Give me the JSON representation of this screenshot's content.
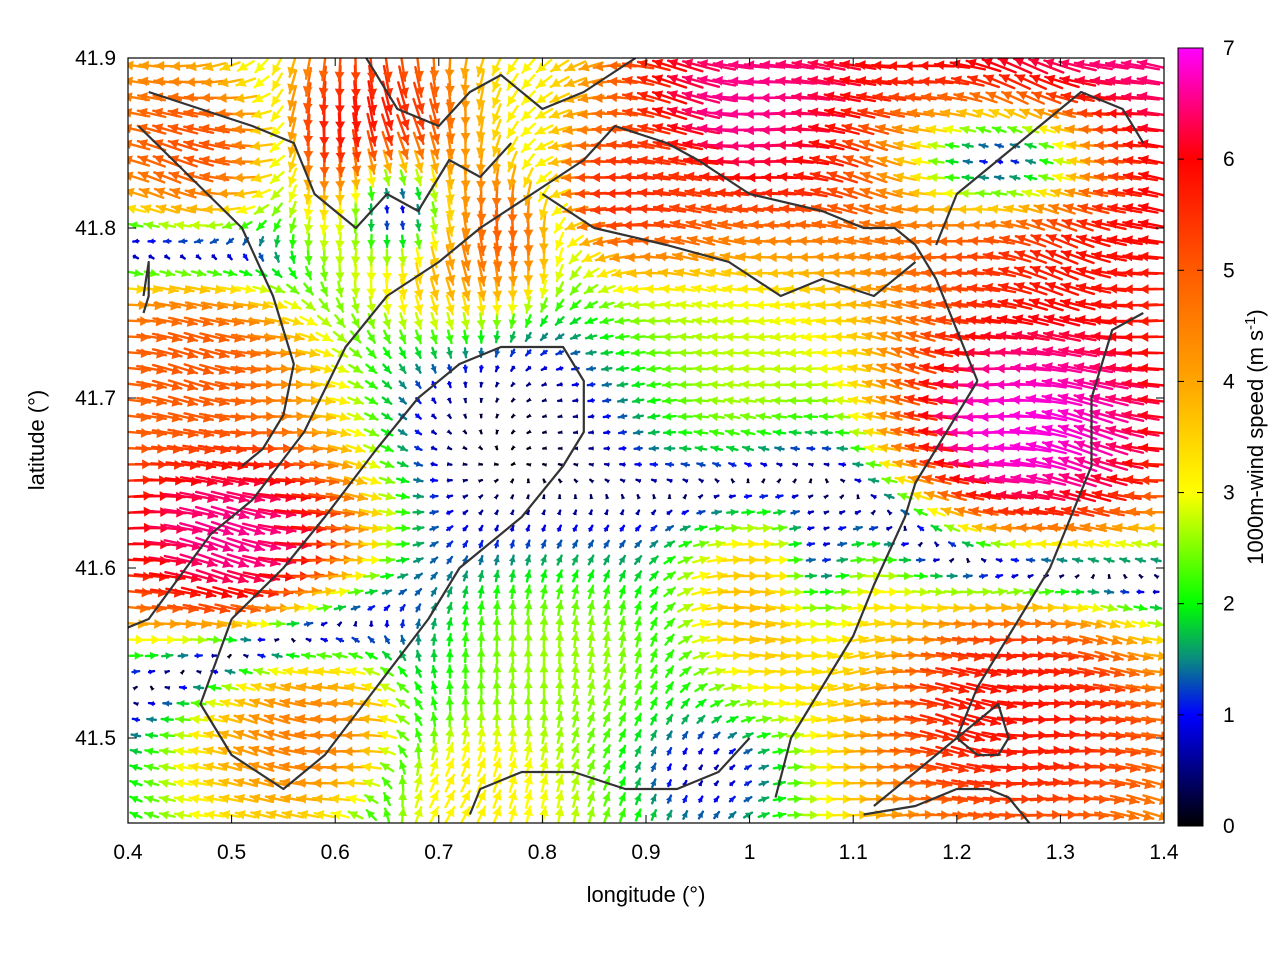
{
  "chart_data": {
    "type": "vector-field",
    "title": "",
    "xlabel": "longitude (°)",
    "ylabel": "latitude (°)",
    "colorbar_label": "1000m-wind speed (m s",
    "colorbar_label_sup": "-1",
    "colorbar_label_end": ")",
    "xlim": [
      0.4,
      1.4
    ],
    "ylim": [
      41.45,
      41.9
    ],
    "xticks": [
      "0.4",
      "0.5",
      "0.6",
      "0.7",
      "0.8",
      "0.9",
      "1",
      "1.1",
      "1.2",
      "1.3",
      "1.4"
    ],
    "xtick_values": [
      0.4,
      0.5,
      0.6,
      0.7,
      0.8,
      0.9,
      1.0,
      1.1,
      1.2,
      1.3,
      1.4
    ],
    "yticks": [
      "41.5",
      "41.6",
      "41.7",
      "41.8",
      "41.9"
    ],
    "ytick_values": [
      41.5,
      41.6,
      41.7,
      41.8,
      41.9
    ],
    "colorbar_range": [
      0,
      7
    ],
    "colorbar_ticks": [
      "0",
      "1",
      "2",
      "3",
      "4",
      "5",
      "6",
      "7"
    ],
    "colorbar_tick_values": [
      0,
      1,
      2,
      3,
      4,
      5,
      6,
      7
    ],
    "colormap": [
      {
        "value": 0,
        "color": "#000000"
      },
      {
        "value": 1,
        "color": "#0000ff"
      },
      {
        "value": 1.5,
        "color": "#0a8a80"
      },
      {
        "value": 2,
        "color": "#00ff00"
      },
      {
        "value": 3,
        "color": "#ffff00"
      },
      {
        "value": 4,
        "color": "#ffa500"
      },
      {
        "value": 5,
        "color": "#ff5a00"
      },
      {
        "value": 6,
        "color": "#ff0000"
      },
      {
        "value": 7,
        "color": "#ff00ff"
      }
    ],
    "grid": false,
    "wind_field": {
      "lon_range": [
        0.4,
        1.4
      ],
      "lat_range": [
        41.45,
        41.9
      ],
      "columns": 66,
      "rows": 48,
      "speed_scale_max": 7,
      "dominant_flow": "westerly in the south, easterly in the northwest, weak winds over the central basin",
      "features": [
        {
          "kind": "uniform",
          "lon": 0.5,
          "lat": 41.62,
          "u": 6.5,
          "v": -0.9
        },
        {
          "kind": "uniform",
          "lon": 0.46,
          "lat": 41.72,
          "u": 5.0,
          "v": -0.5
        },
        {
          "kind": "uniform",
          "lon": 0.47,
          "lat": 41.85,
          "u": -5.0,
          "v": 1.0
        },
        {
          "kind": "uniform",
          "lon": 0.62,
          "lat": 41.86,
          "u": 1.0,
          "v": -5.8
        },
        {
          "kind": "uniform",
          "lon": 0.75,
          "lat": 41.8,
          "u": 1.0,
          "v": -5.0
        },
        {
          "kind": "uniform",
          "lon": 0.88,
          "lat": 41.82,
          "u": -5.5,
          "v": 0.8
        },
        {
          "kind": "uniform",
          "lon": 1.0,
          "lat": 41.87,
          "u": -6.5,
          "v": 1.0
        },
        {
          "kind": "uniform",
          "lon": 1.3,
          "lat": 41.86,
          "u": -6.5,
          "v": 1.5
        },
        {
          "kind": "uniform",
          "lon": 1.27,
          "lat": 41.68,
          "u": -6.8,
          "v": 1.0
        },
        {
          "kind": "uniform",
          "lon": 1.25,
          "lat": 41.52,
          "u": 5.8,
          "v": -0.6
        },
        {
          "kind": "uniform",
          "lon": 1.03,
          "lat": 41.58,
          "u": 3.8,
          "v": 0.2
        },
        {
          "kind": "uniform",
          "lon": 0.82,
          "lat": 41.55,
          "u": 0.3,
          "v": 2.6
        },
        {
          "kind": "uniform",
          "lon": 0.58,
          "lat": 41.5,
          "u": -4.5,
          "v": 0.5
        },
        {
          "kind": "uniform",
          "lon": 0.95,
          "lat": 41.72,
          "u": -2.8,
          "v": 0.1
        },
        {
          "kind": "uniform",
          "lon": 0.73,
          "lat": 41.47,
          "u": 1.0,
          "v": 3.0
        },
        {
          "kind": "calm",
          "lon": 0.78,
          "lat": 41.68,
          "radius_lon": 0.12,
          "radius_lat": 0.06,
          "strength": 0.85
        },
        {
          "kind": "calm",
          "lon": 0.66,
          "lat": 41.81,
          "radius_lon": 0.05,
          "radius_lat": 0.03,
          "strength": 0.8
        },
        {
          "kind": "calm",
          "lon": 1.24,
          "lat": 41.84,
          "radius_lon": 0.1,
          "radius_lat": 0.035,
          "strength": 0.85
        },
        {
          "kind": "calm",
          "lon": 1.07,
          "lat": 41.62,
          "radius_lon": 0.035,
          "radius_lat": 0.05,
          "strength": 0.75
        },
        {
          "kind": "calm",
          "lon": 0.96,
          "lat": 41.48,
          "radius_lon": 0.07,
          "radius_lat": 0.03,
          "strength": 0.7
        }
      ]
    },
    "terrain_contours": [
      {
        "name": "outer-ridge-west",
        "lon": [
          0.4,
          0.42,
          0.48,
          0.52,
          0.57,
          0.61,
          0.65,
          0.7,
          0.74,
          0.79,
          0.84,
          0.87,
          0.92,
          0.95,
          1.0,
          1.07,
          1.11,
          1.14,
          1.16,
          1.18,
          1.2,
          1.22
        ],
        "lat": [
          41.565,
          41.57,
          41.62,
          41.64,
          41.68,
          41.73,
          41.76,
          41.78,
          41.8,
          41.82,
          41.84,
          41.86,
          41.85,
          41.84,
          41.82,
          41.81,
          41.8,
          41.8,
          41.79,
          41.77,
          41.74,
          41.71
        ]
      },
      {
        "name": "outer-ridge-east",
        "lon": [
          1.22,
          1.2,
          1.18,
          1.16,
          1.15,
          1.12,
          1.1,
          1.07,
          1.04,
          1.025
        ],
        "lat": [
          41.71,
          41.69,
          41.67,
          41.65,
          41.63,
          41.59,
          41.56,
          41.53,
          41.5,
          41.465
        ]
      },
      {
        "name": "inner-basin-rim",
        "lon": [
          0.5,
          0.47,
          0.5,
          0.55,
          0.59,
          0.64,
          0.69,
          0.72,
          0.78,
          0.82,
          0.84,
          0.84,
          0.82,
          0.76,
          0.72,
          0.68,
          0.64,
          0.59,
          0.55,
          0.5
        ],
        "lat": [
          41.57,
          41.52,
          41.49,
          41.47,
          41.49,
          41.53,
          41.57,
          41.6,
          41.63,
          41.66,
          41.68,
          41.71,
          41.73,
          41.73,
          41.72,
          41.7,
          41.67,
          41.63,
          41.6,
          41.57
        ]
      },
      {
        "name": "northwest-hills",
        "lon": [
          0.42,
          0.47,
          0.52,
          0.56,
          0.58,
          0.62,
          0.65,
          0.68,
          0.71,
          0.74,
          0.77
        ],
        "lat": [
          41.88,
          41.87,
          41.86,
          41.85,
          41.82,
          41.8,
          41.82,
          41.81,
          41.84,
          41.83,
          41.85
        ]
      },
      {
        "name": "northwest-spur",
        "lon": [
          0.41,
          0.46,
          0.51,
          0.54,
          0.56,
          0.55,
          0.53,
          0.51
        ],
        "lat": [
          41.86,
          41.83,
          41.8,
          41.76,
          41.72,
          41.69,
          41.67,
          41.66
        ]
      },
      {
        "name": "north-valley",
        "lon": [
          0.63,
          0.66,
          0.7,
          0.73,
          0.76,
          0.8,
          0.84,
          0.89
        ],
        "lat": [
          41.9,
          41.87,
          41.86,
          41.88,
          41.89,
          41.87,
          41.88,
          41.9
        ]
      },
      {
        "name": "north-ridge",
        "lon": [
          0.8,
          0.85,
          0.92,
          0.98,
          1.03,
          1.07,
          1.12,
          1.16
        ],
        "lat": [
          41.82,
          41.8,
          41.79,
          41.78,
          41.76,
          41.77,
          41.76,
          41.78
        ]
      },
      {
        "name": "northeast-arc",
        "lon": [
          1.18,
          1.2,
          1.24,
          1.28,
          1.32,
          1.36,
          1.38
        ],
        "lat": [
          41.79,
          41.82,
          41.84,
          41.86,
          41.88,
          41.87,
          41.85
        ]
      },
      {
        "name": "east-ridge",
        "lon": [
          1.38,
          1.35,
          1.33,
          1.33,
          1.31,
          1.29,
          1.27,
          1.25,
          1.22,
          1.2,
          1.16,
          1.12
        ],
        "lat": [
          41.75,
          41.74,
          41.7,
          41.66,
          41.63,
          41.6,
          41.58,
          41.56,
          41.53,
          41.5,
          41.48,
          41.46
        ]
      },
      {
        "name": "southeast-loop",
        "lon": [
          1.2,
          1.22,
          1.24,
          1.25,
          1.24,
          1.22,
          1.2
        ],
        "lat": [
          41.5,
          41.51,
          41.52,
          41.5,
          41.49,
          41.49,
          41.5
        ]
      },
      {
        "name": "southeast-edge",
        "lon": [
          1.11,
          1.16,
          1.2,
          1.23,
          1.25,
          1.27
        ],
        "lat": [
          41.455,
          41.46,
          41.47,
          41.47,
          41.465,
          41.45
        ]
      },
      {
        "name": "south-ridge",
        "lon": [
          0.73,
          0.74,
          0.78,
          0.83,
          0.88,
          0.93,
          0.97,
          1.0
        ],
        "lat": [
          41.455,
          41.47,
          41.48,
          41.48,
          41.47,
          41.47,
          41.48,
          41.5
        ]
      },
      {
        "name": "west-edge",
        "lon": [
          0.415,
          0.42,
          0.42,
          0.415
        ],
        "lat": [
          41.75,
          41.76,
          41.78,
          41.76
        ]
      }
    ]
  }
}
